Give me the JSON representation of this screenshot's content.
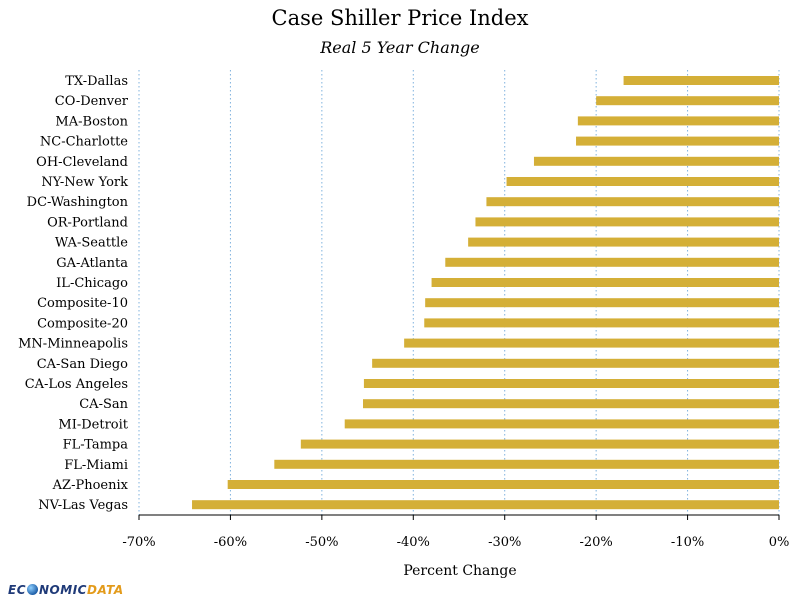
{
  "chart_data": {
    "type": "bar",
    "orientation": "horizontal",
    "title": "Case Shiller Price Index",
    "subtitle": "Real 5 Year Change",
    "xlabel": "Percent Change",
    "ylabel": "",
    "xlim": [
      -70,
      0
    ],
    "x_ticks": [
      -70,
      -60,
      -50,
      -40,
      -30,
      -20,
      -10,
      0
    ],
    "x_tick_labels": [
      "-70%",
      "-60%",
      "-50%",
      "-40%",
      "-30%",
      "-20%",
      "-10%",
      "0%"
    ],
    "grid": "vertical dotted",
    "bar_color": "#d4af37",
    "categories": [
      "TX-Dallas",
      "CO-Denver",
      "MA-Boston",
      "NC-Charlotte",
      "OH-Cleveland",
      "NY-New York",
      "DC-Washington",
      "OR-Portland",
      "WA-Seattle",
      "GA-Atlanta",
      "IL-Chicago",
      "Composite-10",
      "Composite-20",
      "MN-Minneapolis",
      "CA-San Diego",
      "CA-Los Angeles",
      "CA-San",
      "MI-Detroit",
      "FL-Tampa",
      "FL-Miami",
      "AZ-Phoenix",
      "NV-Las Vegas"
    ],
    "values": [
      -17.0,
      -20.0,
      -22.0,
      -22.2,
      -26.8,
      -29.8,
      -32.0,
      -33.2,
      -34.0,
      -36.5,
      -38.0,
      -38.7,
      -38.8,
      -41.0,
      -44.5,
      -45.4,
      -45.5,
      -47.5,
      -52.3,
      -55.2,
      -60.3,
      -64.2
    ]
  },
  "logo": {
    "text_before_globe": "EC",
    "text_after_globe": "NOMIC",
    "text_accent": "DATA"
  }
}
